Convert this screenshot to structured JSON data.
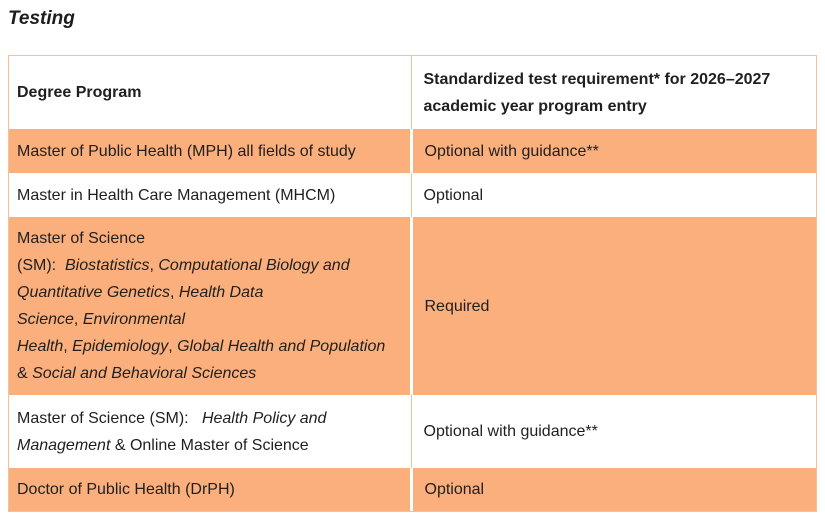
{
  "page": {
    "title": "Testing"
  },
  "colors": {
    "row_highlight": "#FAAF7C",
    "table_border": "#F5C094",
    "text": "#1F1F1F"
  },
  "table": {
    "header": {
      "col1": "Degree Program",
      "col2_segments": [
        {
          "t": "Standardized test requirement* for 2026–2027",
          "br": true
        },
        {
          "t": "academic year program entry"
        }
      ]
    },
    "rows": [
      {
        "style": "orange",
        "program": [
          {
            "t": "Master of Public Health (MPH) all fields of study"
          }
        ],
        "requirement": "Optional with guidance**"
      },
      {
        "style": "white",
        "program": [
          {
            "t": "Master in Health Care Management (MHCM)"
          }
        ],
        "requirement": "Optional"
      },
      {
        "style": "orange",
        "program": [
          {
            "t": "Master of Science",
            "br": true
          },
          {
            "t": "(SM):  "
          },
          {
            "t": "Biostatistics",
            "i": true
          },
          {
            "t": ", "
          },
          {
            "t": "Computational Biology and",
            "i": true,
            "br": true
          },
          {
            "t": "Quantitative Genetics",
            "i": true
          },
          {
            "t": ", "
          },
          {
            "t": "Health Data",
            "i": true,
            "br": true
          },
          {
            "t": "Science",
            "i": true
          },
          {
            "t": ", "
          },
          {
            "t": "Environmental",
            "i": true,
            "br": true
          },
          {
            "t": "Health",
            "i": true
          },
          {
            "t": ", "
          },
          {
            "t": "Epidemiology",
            "i": true
          },
          {
            "t": ", "
          },
          {
            "t": "Global Health and Population",
            "i": true,
            "br": true
          },
          {
            "t": "& "
          },
          {
            "t": "Social and Behavioral Sciences",
            "i": true
          }
        ],
        "requirement": "Required"
      },
      {
        "style": "white",
        "program": [
          {
            "t": "Master of Science (SM):   "
          },
          {
            "t": "Health Policy and",
            "i": true,
            "br": true
          },
          {
            "t": "Management",
            "i": true
          },
          {
            "t": " & Online Master of Science"
          }
        ],
        "requirement": "Optional with guidance**"
      },
      {
        "style": "orange",
        "program": [
          {
            "t": "Doctor of Public Health (DrPH)"
          }
        ],
        "requirement": "Optional"
      }
    ]
  }
}
